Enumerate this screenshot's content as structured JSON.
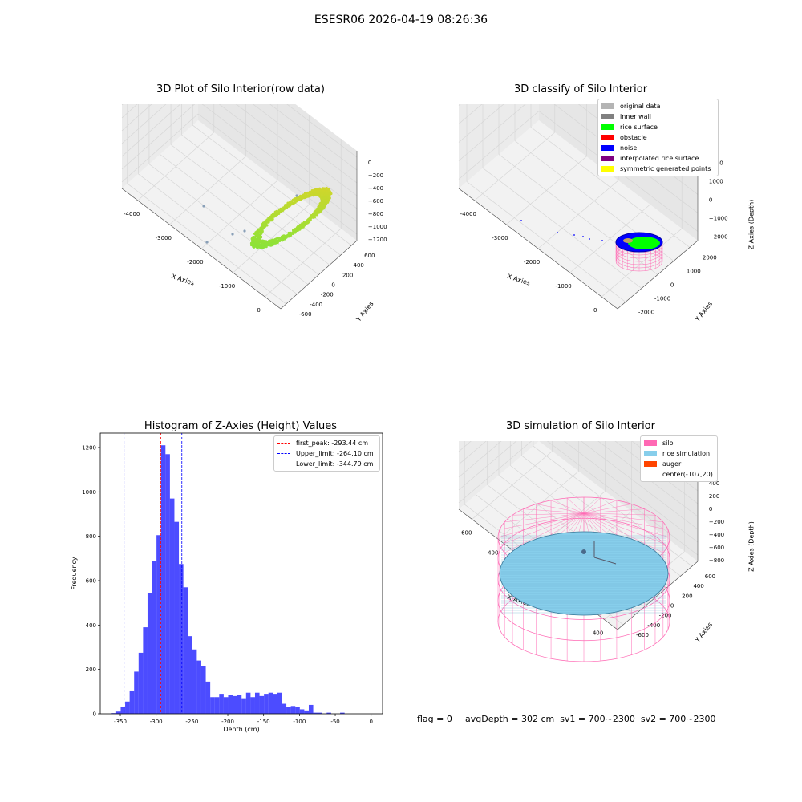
{
  "suptitle": "ESESR06 2026-04-19 08:26:36",
  "footer": {
    "flag": "flag = 0",
    "stats": "avgDepth = 302 cm  sv1 = 700~2300  sv2 = 700~2300"
  },
  "panels": {
    "raw": {
      "title": "3D Plot of Silo Interior(row data)",
      "x_label": "X Axies",
      "y_label": "Y Axies",
      "z_label": "Z Axies (Depth)",
      "x_ticks": [
        "-4000",
        "-3000",
        "-2000",
        "-1000",
        "0"
      ],
      "y_ticks": [
        "-600",
        "-400",
        "-200",
        "0",
        "200",
        "400",
        "600"
      ],
      "z_ticks": [
        "0",
        "−200",
        "−400",
        "−600",
        "−800",
        "−1000",
        "−1200"
      ]
    },
    "classify": {
      "title": "3D classify of Silo Interior",
      "x_label": "X Axies",
      "y_label": "Y Axies",
      "z_label": "Z Axies (Depth)",
      "x_ticks": [
        "-4000",
        "-3000",
        "-2000",
        "-1000",
        "0"
      ],
      "y_ticks": [
        "-2000",
        "-1000",
        "0",
        "1000",
        "2000"
      ],
      "z_ticks": [
        "2000",
        "1000",
        "0",
        "−1000",
        "−2000"
      ],
      "legend": [
        {
          "label": "original data",
          "color": "#b4b4b4"
        },
        {
          "label": "inner wall",
          "color": "#808080"
        },
        {
          "label": "rice surface",
          "color": "#00ff00"
        },
        {
          "label": "obstacle",
          "color": "#ff0000"
        },
        {
          "label": "noise",
          "color": "#0000ff"
        },
        {
          "label": "interpolated rice surface",
          "color": "#800080"
        },
        {
          "label": "symmetric generated points",
          "color": "#ffff00"
        }
      ]
    },
    "simulation": {
      "title": "3D simulation of Silo Interior",
      "x_label": "X Axies",
      "y_label": "Y Axies",
      "z_label": "Z Axies (Depth)",
      "x_ticks": [
        "-600",
        "-400",
        "-200",
        "0",
        "200",
        "400"
      ],
      "y_ticks": [
        "-600",
        "-400",
        "-200",
        "0",
        "200",
        "400",
        "600"
      ],
      "z_ticks": [
        "400",
        "200",
        "0",
        "−200",
        "−400",
        "−600",
        "−800"
      ],
      "legend": [
        {
          "label": "silo",
          "color": "#ff69b4"
        },
        {
          "label": "rice simulation",
          "color": "#87ceeb"
        },
        {
          "label": "auger",
          "color": "#ff4500"
        },
        {
          "label": "center(-107,20)",
          "color": ""
        }
      ]
    }
  },
  "chart_data": [
    {
      "type": "scatter",
      "title": "3D Plot of Silo Interior(row data)",
      "xlabel": "X Axies",
      "ylabel": "Y Axies",
      "zlabel": "Z Axies (Depth)"
    },
    {
      "type": "scatter",
      "title": "3D classify of Silo Interior",
      "xlabel": "X Axies",
      "ylabel": "Y Axies",
      "zlabel": "Z Axies (Depth)"
    },
    {
      "type": "bar",
      "title": "Histogram of Z-Axies (Height) Values",
      "xlabel": "Depth (cm)",
      "ylabel": "Frequency",
      "xlim": [
        -378,
        16
      ],
      "ylim": [
        0,
        1265
      ],
      "bin_width": 6.25,
      "bin_start": -362,
      "values": [
        3,
        10,
        30,
        55,
        105,
        190,
        275,
        390,
        545,
        690,
        805,
        1210,
        1170,
        970,
        865,
        675,
        570,
        350,
        290,
        240,
        215,
        145,
        75,
        75,
        90,
        75,
        85,
        80,
        85,
        70,
        95,
        75,
        95,
        80,
        90,
        95,
        90,
        95,
        45,
        30,
        35,
        30,
        20,
        15,
        40,
        5,
        5,
        0,
        5,
        0,
        0,
        5
      ],
      "bar_color": "#0000ff",
      "lines": [
        {
          "label": "first_peak: -293.44 cm",
          "x": -293.44,
          "color": "#ff0000"
        },
        {
          "label": "Upper_limit: -264.10 cm",
          "x": -264.1,
          "color": "#0000ff"
        },
        {
          "label": "Lower_limit: -344.79 cm",
          "x": -344.79,
          "color": "#0000ff"
        }
      ],
      "x_ticks": [
        -350,
        -300,
        -250,
        -200,
        -150,
        -100,
        -50,
        0
      ],
      "y_ticks": [
        0,
        200,
        400,
        600,
        800,
        1000,
        1200
      ]
    },
    {
      "type": "scatter",
      "title": "3D simulation of Silo Interior",
      "xlabel": "X Axies",
      "ylabel": "Y Axies",
      "zlabel": "Z Axies (Depth)"
    }
  ]
}
